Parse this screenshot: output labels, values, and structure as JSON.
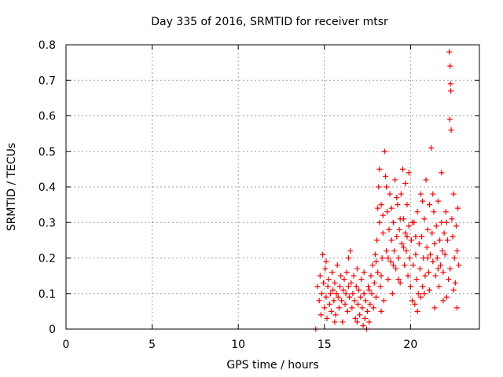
{
  "chart_data": {
    "type": "scatter",
    "title": "Day 335 of 2016, SRMTID for receiver mtsr",
    "xlabel": "GPS time / hours",
    "ylabel": "SRMTID / TECUs",
    "xlim": [
      0,
      24
    ],
    "ylim": [
      0,
      0.8
    ],
    "grid": true,
    "marker": "+",
    "color": "#ff0000",
    "x_ticks": [
      0,
      5,
      10,
      15,
      20
    ],
    "x_tick_labels": [
      "0",
      "5",
      "10",
      "15",
      "20"
    ],
    "y_ticks": [
      0,
      0.1,
      0.2,
      0.3,
      0.4,
      0.5,
      0.6,
      0.7,
      0.8
    ],
    "y_tick_labels": [
      "0",
      "0.1",
      "0.2",
      "0.3",
      "0.4",
      "0.5",
      "0.6",
      "0.7",
      "0.8"
    ],
    "series": [
      {
        "name": "SRMTID",
        "points": [
          [
            14.5,
            0.0
          ],
          [
            14.6,
            0.12
          ],
          [
            14.7,
            0.08
          ],
          [
            14.75,
            0.15
          ],
          [
            14.8,
            0.04
          ],
          [
            14.85,
            0.1
          ],
          [
            14.9,
            0.21
          ],
          [
            14.95,
            0.13
          ],
          [
            15.0,
            0.06
          ],
          [
            15.05,
            0.17
          ],
          [
            15.1,
            0.09
          ],
          [
            15.15,
            0.03
          ],
          [
            15.2,
            0.12
          ],
          [
            15.25,
            0.14
          ],
          [
            15.3,
            0.07
          ],
          [
            15.35,
            0.1
          ],
          [
            15.4,
            0.05
          ],
          [
            15.45,
            0.16
          ],
          [
            15.5,
            0.11
          ],
          [
            15.55,
            0.08
          ],
          [
            15.6,
            0.13
          ],
          [
            15.65,
            0.04
          ],
          [
            15.7,
            0.1
          ],
          [
            15.75,
            0.18
          ],
          [
            15.8,
            0.09
          ],
          [
            15.85,
            0.06
          ],
          [
            15.9,
            0.12
          ],
          [
            15.95,
            0.15
          ],
          [
            16.0,
            0.08
          ],
          [
            16.05,
            0.02
          ],
          [
            16.1,
            0.11
          ],
          [
            16.15,
            0.14
          ],
          [
            16.2,
            0.07
          ],
          [
            16.25,
            0.1
          ],
          [
            16.3,
            0.16
          ],
          [
            16.35,
            0.05
          ],
          [
            16.4,
            0.12
          ],
          [
            16.45,
            0.09
          ],
          [
            16.5,
            0.22
          ],
          [
            16.55,
            0.13
          ],
          [
            16.6,
            0.06
          ],
          [
            16.65,
            0.1
          ],
          [
            16.7,
            0.15
          ],
          [
            16.75,
            0.08
          ],
          [
            16.8,
            0.03
          ],
          [
            16.85,
            0.12
          ],
          [
            16.9,
            0.17
          ],
          [
            16.95,
            0.07
          ],
          [
            17.0,
            0.11
          ],
          [
            17.05,
            0.04
          ],
          [
            17.1,
            0.09
          ],
          [
            17.15,
            0.14
          ],
          [
            17.2,
            0.06
          ],
          [
            17.25,
            0.01
          ],
          [
            17.3,
            0.1
          ],
          [
            17.35,
            0.03
          ],
          [
            17.4,
            0.08
          ],
          [
            17.45,
            0.0
          ],
          [
            17.5,
            0.05
          ],
          [
            17.55,
            0.12
          ],
          [
            17.6,
            0.02
          ],
          [
            17.65,
            0.07
          ],
          [
            17.7,
            0.15
          ],
          [
            17.75,
            0.1
          ],
          [
            17.8,
            0.18
          ],
          [
            17.85,
            0.06
          ],
          [
            17.9,
            0.13
          ],
          [
            17.95,
            0.21
          ],
          [
            18.0,
            0.09
          ],
          [
            18.05,
            0.25
          ],
          [
            18.1,
            0.16
          ],
          [
            18.15,
            0.4
          ],
          [
            18.2,
            0.3
          ],
          [
            18.25,
            0.12
          ],
          [
            18.3,
            0.35
          ],
          [
            18.35,
            0.2
          ],
          [
            18.4,
            0.27
          ],
          [
            18.45,
            0.08
          ],
          [
            18.5,
            0.5
          ],
          [
            18.55,
            0.43
          ],
          [
            18.6,
            0.22
          ],
          [
            18.65,
            0.33
          ],
          [
            18.7,
            0.14
          ],
          [
            18.75,
            0.28
          ],
          [
            18.8,
            0.38
          ],
          [
            18.85,
            0.19
          ],
          [
            18.9,
            0.25
          ],
          [
            18.95,
            0.1
          ],
          [
            19.0,
            0.3
          ],
          [
            19.05,
            0.22
          ],
          [
            19.1,
            0.42
          ],
          [
            19.15,
            0.17
          ],
          [
            19.2,
            0.26
          ],
          [
            19.25,
            0.35
          ],
          [
            19.3,
            0.2
          ],
          [
            19.35,
            0.28
          ],
          [
            19.4,
            0.13
          ],
          [
            19.45,
            0.38
          ],
          [
            19.5,
            0.24
          ],
          [
            19.55,
            0.45
          ],
          [
            19.6,
            0.31
          ],
          [
            19.65,
            0.18
          ],
          [
            19.7,
            0.27
          ],
          [
            19.75,
            0.22
          ],
          [
            19.8,
            0.35
          ],
          [
            19.85,
            0.15
          ],
          [
            19.9,
            0.29
          ],
          [
            19.95,
            0.2
          ],
          [
            20.0,
            0.12
          ],
          [
            20.05,
            0.25
          ],
          [
            20.1,
            0.08
          ],
          [
            20.15,
            0.18
          ],
          [
            20.2,
            0.3
          ],
          [
            20.25,
            0.07
          ],
          [
            20.3,
            0.21
          ],
          [
            20.35,
            0.14
          ],
          [
            20.4,
            0.33
          ],
          [
            20.45,
            0.1
          ],
          [
            20.5,
            0.24
          ],
          [
            20.55,
            0.17
          ],
          [
            20.6,
            0.38
          ],
          [
            20.65,
            0.26
          ],
          [
            20.7,
            0.12
          ],
          [
            20.75,
            0.2
          ],
          [
            20.8,
            0.31
          ],
          [
            20.85,
            0.15
          ],
          [
            20.9,
            0.42
          ],
          [
            20.95,
            0.23
          ],
          [
            21.0,
            0.28
          ],
          [
            21.05,
            0.16
          ],
          [
            21.1,
            0.35
          ],
          [
            21.15,
            0.21
          ],
          [
            21.2,
            0.51
          ],
          [
            21.25,
            0.27
          ],
          [
            21.3,
            0.19
          ],
          [
            21.35,
            0.33
          ],
          [
            21.4,
            0.24
          ],
          [
            21.45,
            0.15
          ],
          [
            21.5,
            0.29
          ],
          [
            21.55,
            0.2
          ],
          [
            21.6,
            0.36
          ],
          [
            21.65,
            0.12
          ],
          [
            21.7,
            0.25
          ],
          [
            21.75,
            0.18
          ],
          [
            21.8,
            0.3
          ],
          [
            21.85,
            0.22
          ],
          [
            21.9,
            0.16
          ],
          [
            21.95,
            0.27
          ],
          [
            22.0,
            0.21
          ],
          [
            22.05,
            0.33
          ],
          [
            22.1,
            0.09
          ],
          [
            22.15,
            0.25
          ],
          [
            22.2,
            0.14
          ],
          [
            22.25,
            0.78
          ],
          [
            22.3,
            0.74
          ],
          [
            22.32,
            0.69
          ],
          [
            22.34,
            0.67
          ],
          [
            22.28,
            0.59
          ],
          [
            22.36,
            0.56
          ],
          [
            22.4,
            0.31
          ],
          [
            22.45,
            0.26
          ],
          [
            22.5,
            0.38
          ],
          [
            22.55,
            0.2
          ],
          [
            22.6,
            0.13
          ],
          [
            22.65,
            0.29
          ],
          [
            22.7,
            0.22
          ],
          [
            22.75,
            0.34
          ],
          [
            22.8,
            0.18
          ],
          [
            18.1,
            0.34
          ],
          [
            18.2,
            0.45
          ],
          [
            18.3,
            0.15
          ],
          [
            18.4,
            0.32
          ],
          [
            18.6,
            0.4
          ],
          [
            18.7,
            0.2
          ],
          [
            18.9,
            0.34
          ],
          [
            19.0,
            0.18
          ],
          [
            19.2,
            0.37
          ],
          [
            19.3,
            0.14
          ],
          [
            19.4,
            0.31
          ],
          [
            19.6,
            0.23
          ],
          [
            19.7,
            0.41
          ],
          [
            19.8,
            0.26
          ],
          [
            19.9,
            0.44
          ],
          [
            20.1,
            0.3
          ],
          [
            20.3,
            0.26
          ],
          [
            20.4,
            0.05
          ],
          [
            20.6,
            0.09
          ],
          [
            20.7,
            0.36
          ],
          [
            20.8,
            0.1
          ],
          [
            21.0,
            0.2
          ],
          [
            21.1,
            0.11
          ],
          [
            21.3,
            0.38
          ],
          [
            21.4,
            0.06
          ],
          [
            21.6,
            0.17
          ],
          [
            21.8,
            0.44
          ],
          [
            21.9,
            0.08
          ],
          [
            22.1,
            0.3
          ],
          [
            22.3,
            0.17
          ],
          [
            22.5,
            0.11
          ],
          [
            22.7,
            0.06
          ],
          [
            15.1,
            0.19
          ],
          [
            15.6,
            0.02
          ],
          [
            16.4,
            0.2
          ],
          [
            16.9,
            0.02
          ],
          [
            17.3,
            0.16
          ],
          [
            17.6,
            0.11
          ],
          [
            18.0,
            0.19
          ],
          [
            18.3,
            0.05
          ]
        ]
      }
    ]
  }
}
